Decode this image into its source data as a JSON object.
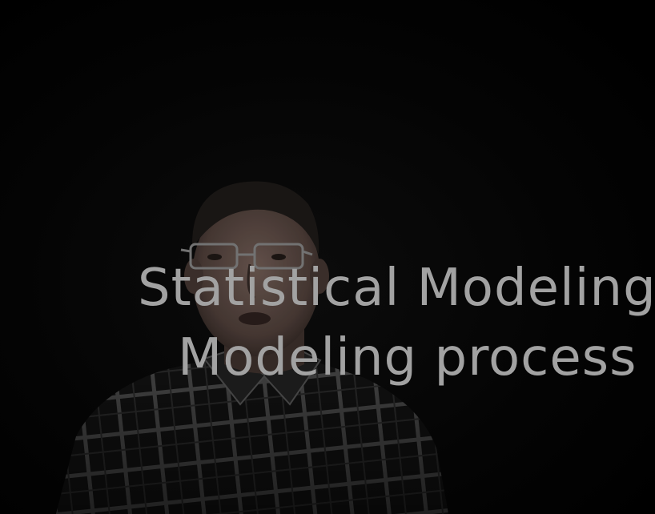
{
  "overlay": {
    "title": "Statistical Modeling",
    "subtitle": "Modeling process"
  },
  "colors": {
    "background": "#000000",
    "overlay_text": "#a2a2a2",
    "shirt_dark": "#151515",
    "shirt_line": "#5a5a5a",
    "skin": "#5b4a44",
    "hair": "#1c1816"
  }
}
